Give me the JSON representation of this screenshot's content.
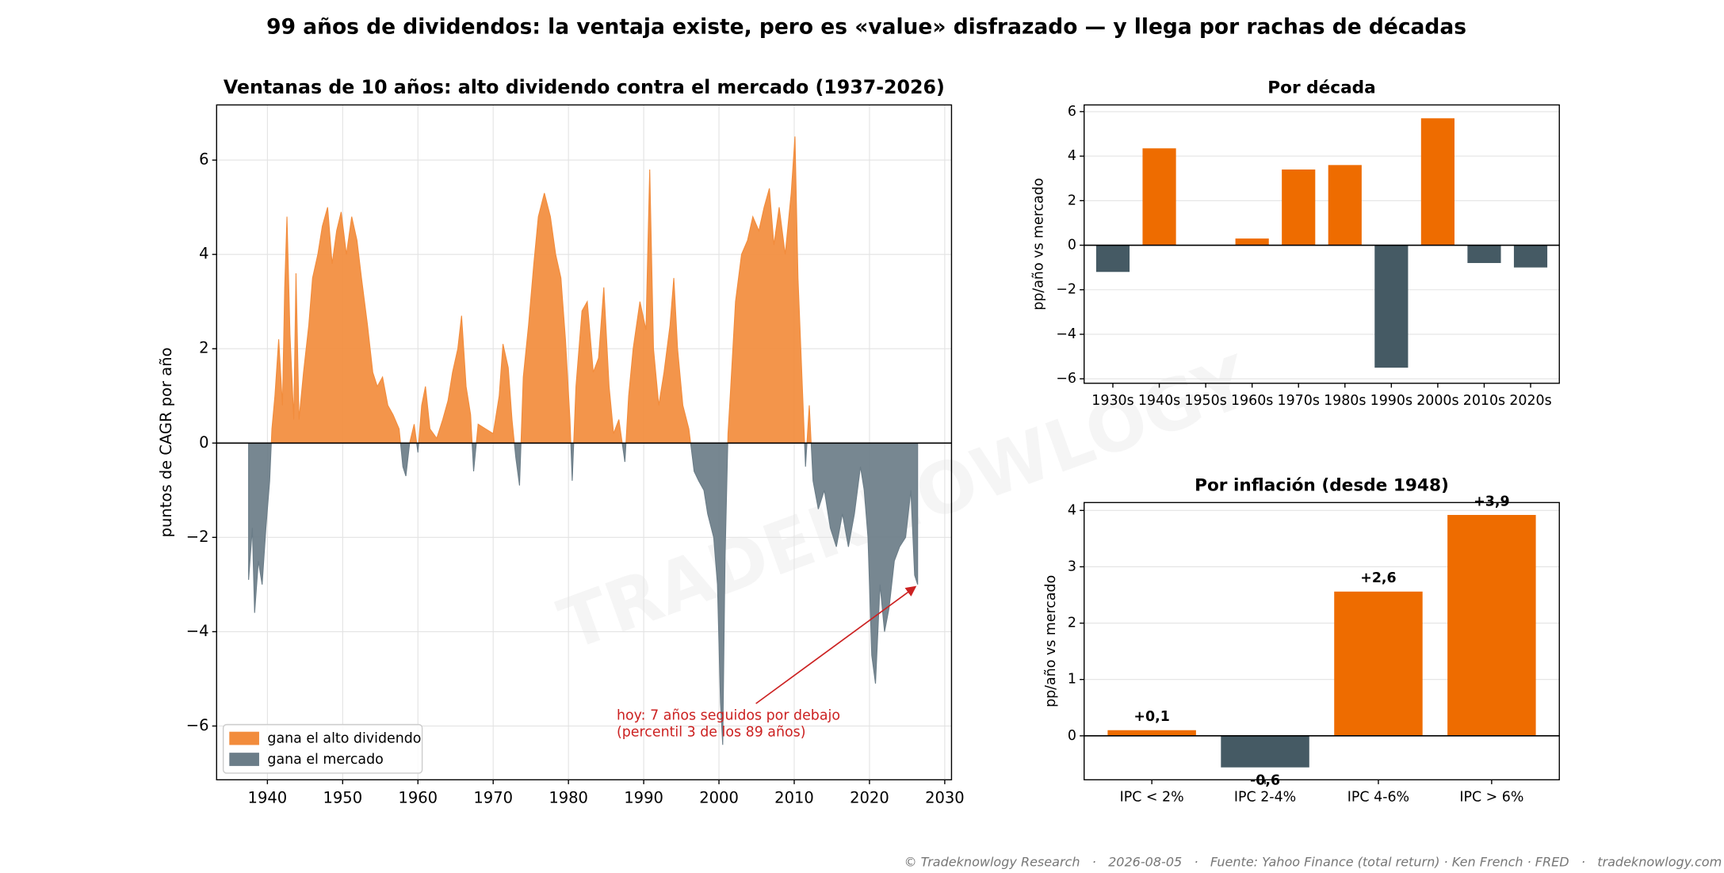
{
  "title": "99 años de dividendos: la ventaja existe, pero es «value» disfrazado — y llega por rachas de décadas",
  "watermark": "TRADEKNOWLOGY",
  "footer": "© Tradeknowlogy Research   ·   2026-08-05   ·   Fuente: Yahoo Finance (total return) · Ken French · FRED   ·   tradeknowlogy.com",
  "chart_data": [
    {
      "type": "area",
      "title": "Ventanas de 10 años: alto dividendo contra el mercado (1937-2026)",
      "ylabel": "puntos de CAGR por año",
      "x": [
        1937.5,
        1938.0,
        1938.3,
        1938.8,
        1939.3,
        1939.8,
        1940.3,
        1940.6,
        1941.0,
        1941.5,
        1942.0,
        1942.3,
        1942.6,
        1943.0,
        1943.5,
        1943.8,
        1944.2,
        1944.8,
        1945.5,
        1946.0,
        1946.7,
        1947.3,
        1948.0,
        1948.6,
        1949.2,
        1949.8,
        1950.5,
        1951.2,
        1951.9,
        1952.5,
        1953.3,
        1954.0,
        1954.6,
        1955.3,
        1956.0,
        1956.7,
        1957.5,
        1958.0,
        1958.4,
        1958.9,
        1959.5,
        1960.0,
        1960.5,
        1961.0,
        1961.6,
        1962.5,
        1963.3,
        1964.0,
        1964.6,
        1965.3,
        1965.8,
        1966.4,
        1967.0,
        1967.4,
        1968.0,
        1969.0,
        1970.0,
        1970.8,
        1971.3,
        1972.0,
        1972.5,
        1973.0,
        1973.5,
        1974.0,
        1974.7,
        1975.4,
        1976.0,
        1976.8,
        1977.6,
        1978.3,
        1979.0,
        1979.6,
        1980.2,
        1980.5,
        1981.0,
        1981.8,
        1982.5,
        1983.3,
        1984.0,
        1984.7,
        1985.4,
        1986.0,
        1986.7,
        1987.5,
        1988.0,
        1988.6,
        1989.5,
        1990.3,
        1990.8,
        1991.3,
        1992.0,
        1992.7,
        1993.5,
        1994.0,
        1994.5,
        1995.2,
        1996.0,
        1996.7,
        1997.3,
        1998.0,
        1998.5,
        1999.3,
        1999.8,
        2000.2,
        2000.5,
        2000.8,
        2001.2,
        2001.5,
        2002.2,
        2003.0,
        2003.8,
        2004.5,
        2005.3,
        2006.0,
        2006.7,
        2007.3,
        2008.0,
        2008.8,
        2009.6,
        2010.1,
        2010.5,
        2011.0,
        2011.5,
        2012.0,
        2012.5,
        2013.2,
        2014.0,
        2014.8,
        2015.6,
        2016.4,
        2017.2,
        2018.0,
        2018.8,
        2019.3,
        2019.8,
        2020.3,
        2020.8,
        2021.4,
        2022.0,
        2022.6,
        2023.3,
        2024.0,
        2024.8,
        2025.5,
        2026.0,
        2026.4
      ],
      "values": [
        -2.9,
        -1.8,
        -3.6,
        -2.5,
        -3.0,
        -1.8,
        -0.8,
        0.3,
        1.0,
        2.2,
        0.8,
        3.3,
        4.8,
        2.3,
        0.5,
        3.6,
        0.5,
        1.5,
        2.5,
        3.5,
        4.0,
        4.6,
        5.0,
        3.8,
        4.5,
        4.9,
        4.0,
        4.8,
        4.3,
        3.5,
        2.5,
        1.5,
        1.2,
        1.4,
        0.8,
        0.6,
        0.3,
        -0.5,
        -0.7,
        0.0,
        0.4,
        -0.2,
        0.8,
        1.2,
        0.3,
        0.1,
        0.5,
        0.9,
        1.5,
        2.0,
        2.7,
        1.2,
        0.6,
        -0.6,
        0.4,
        0.3,
        0.2,
        1.0,
        2.1,
        1.6,
        0.5,
        -0.3,
        -0.9,
        1.4,
        2.5,
        3.8,
        4.8,
        5.3,
        4.8,
        4.0,
        3.5,
        2.2,
        0.5,
        -0.8,
        1.2,
        2.8,
        3.0,
        1.5,
        1.8,
        3.3,
        1.2,
        0.2,
        0.5,
        -0.4,
        1.0,
        2.0,
        3.0,
        2.4,
        5.8,
        2.0,
        0.8,
        1.5,
        2.5,
        3.5,
        2.0,
        0.8,
        0.3,
        -0.6,
        -0.8,
        -1.0,
        -1.5,
        -2.0,
        -3.0,
        -5.5,
        -6.4,
        -2.5,
        0.2,
        1.0,
        3.0,
        4.0,
        4.3,
        4.8,
        4.5,
        5.0,
        5.4,
        4.2,
        5.0,
        4.0,
        5.3,
        6.5,
        3.5,
        1.5,
        -0.5,
        0.8,
        -0.8,
        -1.4,
        -1.0,
        -1.8,
        -2.2,
        -1.5,
        -2.2,
        -1.5,
        -0.5,
        -1.0,
        -2.0,
        -4.5,
        -5.1,
        -3.0,
        -4.0,
        -3.5,
        -2.5,
        -2.2,
        -2.0,
        -1.0,
        -2.8,
        -3.0
      ],
      "legend": [
        {
          "name": "gana el alto dividendo",
          "color": "#f28c3c"
        },
        {
          "name": "gana el mercado",
          "color": "#6b7d88"
        }
      ],
      "legend_corner": "lower left",
      "annotation": {
        "text": [
          "hoy: 7 años seguidos por debajo",
          "(percentil 3 de los 89 años)"
        ],
        "color": "#cc2222"
      },
      "xlim": [
        1933.25,
        2030.9
      ],
      "xticks": [
        1940,
        1950,
        1960,
        1970,
        1980,
        1990,
        2000,
        2010,
        2020,
        2030
      ],
      "ylim": [
        -7.14,
        7.17
      ],
      "yticks": [
        {
          "value": -6,
          "label": "−6"
        },
        {
          "value": -4,
          "label": "−4"
        },
        {
          "value": -2,
          "label": "−2"
        },
        0,
        2,
        4,
        6
      ],
      "grid": true
    },
    {
      "type": "bar",
      "title": "Por década",
      "ylabel": "pp/año vs mercado",
      "categories": [
        "1930s",
        "1940s",
        "1950s",
        "1960s",
        "1970s",
        "1980s",
        "1990s",
        "2000s",
        "2010s",
        "2020s"
      ],
      "values": [
        -1.2,
        4.35,
        0.0,
        0.3,
        3.4,
        3.6,
        -5.5,
        5.7,
        -0.8,
        -1.0
      ],
      "color_positive": "#ee6c00",
      "color_negative": "#455a64",
      "ylim": [
        -6.2,
        6.3
      ],
      "yticks": [
        {
          "value": -6,
          "label": "−6"
        },
        {
          "value": -4,
          "label": "−4"
        },
        {
          "value": -2,
          "label": "−2"
        },
        0,
        2,
        4,
        6
      ],
      "grid": true
    },
    {
      "type": "bar",
      "title": "Por inflación (desde 1948)",
      "ylabel": "pp/año vs mercado",
      "categories": [
        "IPC < 2%",
        "IPC 2-4%",
        "IPC 4-6%",
        "IPC > 6%"
      ],
      "values": [
        0.1,
        -0.56,
        2.56,
        3.92
      ],
      "value_labels": [
        "+0,1",
        "-0,6",
        "+2,6",
        "+3,9"
      ],
      "color_positive": "#ee6c00",
      "color_negative": "#455a64",
      "ylim": [
        -0.78,
        4.14
      ],
      "yticks": [
        0,
        1,
        2,
        3,
        4
      ],
      "grid": true
    }
  ]
}
